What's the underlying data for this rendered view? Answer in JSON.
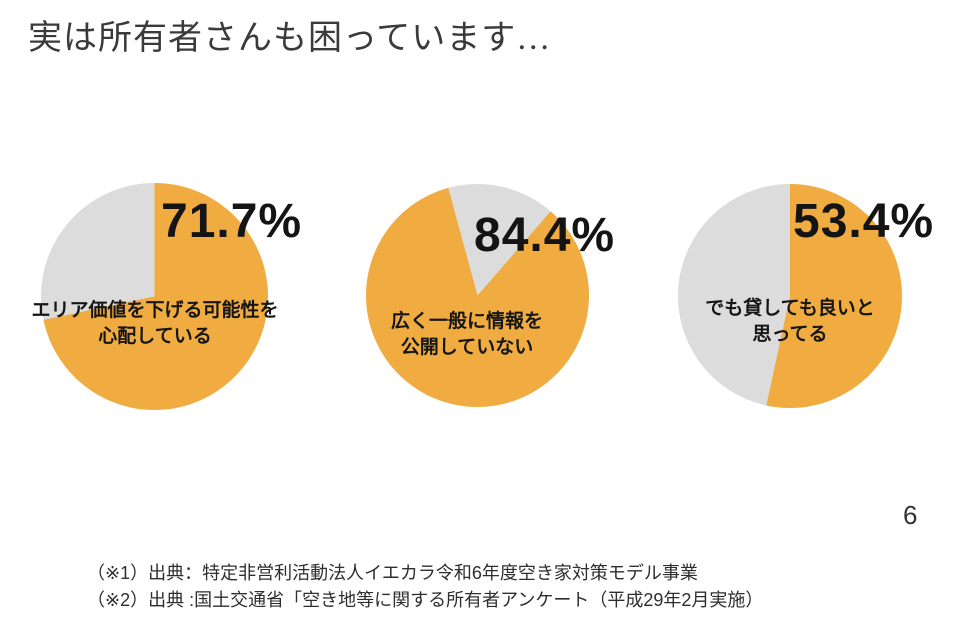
{
  "slide": {
    "title": "実は所有者さんも困っています…",
    "page_number": "6",
    "background": "#ffffff"
  },
  "colors": {
    "highlight_orange": "#F0AC40",
    "remainder_gray": "#DCDCDC",
    "text_black": "#141414"
  },
  "chart_data": {
    "type": "pie",
    "unit": "%",
    "legend": "none",
    "palette": {
      "highlight": "#F0AC40",
      "remainder": "#DCDCDC"
    },
    "charts": [
      {
        "percent_label": "71.7%",
        "value": 71.7,
        "remainder": 28.3,
        "label_lines": [
          "エリア価値を下げる可能性を",
          "心配している"
        ],
        "orange_start_deg": 0,
        "orange_sweep_deg": 258.1
      },
      {
        "percent_label": "84.4%",
        "value": 84.4,
        "remainder": 15.6,
        "label_lines": [
          "広く一般に情報を",
          "公開していない"
        ],
        "orange_start_deg": 41,
        "orange_sweep_deg": 303.8
      },
      {
        "percent_label": "53.4%",
        "value": 53.4,
        "remainder": 46.6,
        "label_lines": [
          "でも貸しても良いと",
          "思ってる"
        ],
        "orange_start_deg": 0,
        "orange_sweep_deg": 192.2
      }
    ]
  },
  "footnotes": {
    "line1": "（※1）出典：特定非営利活動法人イエカラ令和6年度空き家対策モデル事業",
    "line2": "（※2）出典 :国土交通省「空き地等に関する所有者アンケート（平成29年2月実施）"
  }
}
